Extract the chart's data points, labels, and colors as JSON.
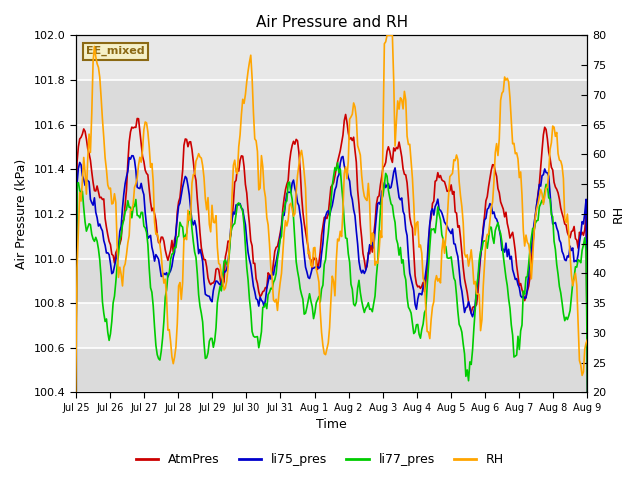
{
  "title": "Air Pressure and RH",
  "xlabel": "Time",
  "ylabel_left": "Air Pressure (kPa)",
  "ylabel_right": "RH",
  "ylim_left": [
    100.4,
    102.0
  ],
  "ylim_right": [
    20,
    80
  ],
  "yticks_left": [
    100.4,
    100.6,
    100.8,
    101.0,
    101.2,
    101.4,
    101.6,
    101.8,
    102.0
  ],
  "yticks_right": [
    20,
    25,
    30,
    35,
    40,
    45,
    50,
    55,
    60,
    65,
    70,
    75,
    80
  ],
  "xtick_labels": [
    "Jul 25",
    "Jul 26",
    "Jul 27",
    "Jul 28",
    "Jul 29",
    "Jul 30",
    "Jul 31",
    "Aug 1",
    "Aug 2",
    "Aug 3",
    "Aug 4",
    "Aug 5",
    "Aug 6",
    "Aug 7",
    "Aug 8",
    "Aug 9"
  ],
  "annotation_text": "EE_mixed",
  "annotation_color": "#8B6914",
  "annotation_bg": "#F5F0C8",
  "series_colors": {
    "AtmPres": "#CC0000",
    "li75_pres": "#0000CC",
    "li77_pres": "#00CC00",
    "RH": "#FFA500"
  },
  "line_width": 1.2,
  "plot_bg_color": "#E8E8E8",
  "grid_color": "#FFFFFF",
  "n_points": 384,
  "seed": 42
}
